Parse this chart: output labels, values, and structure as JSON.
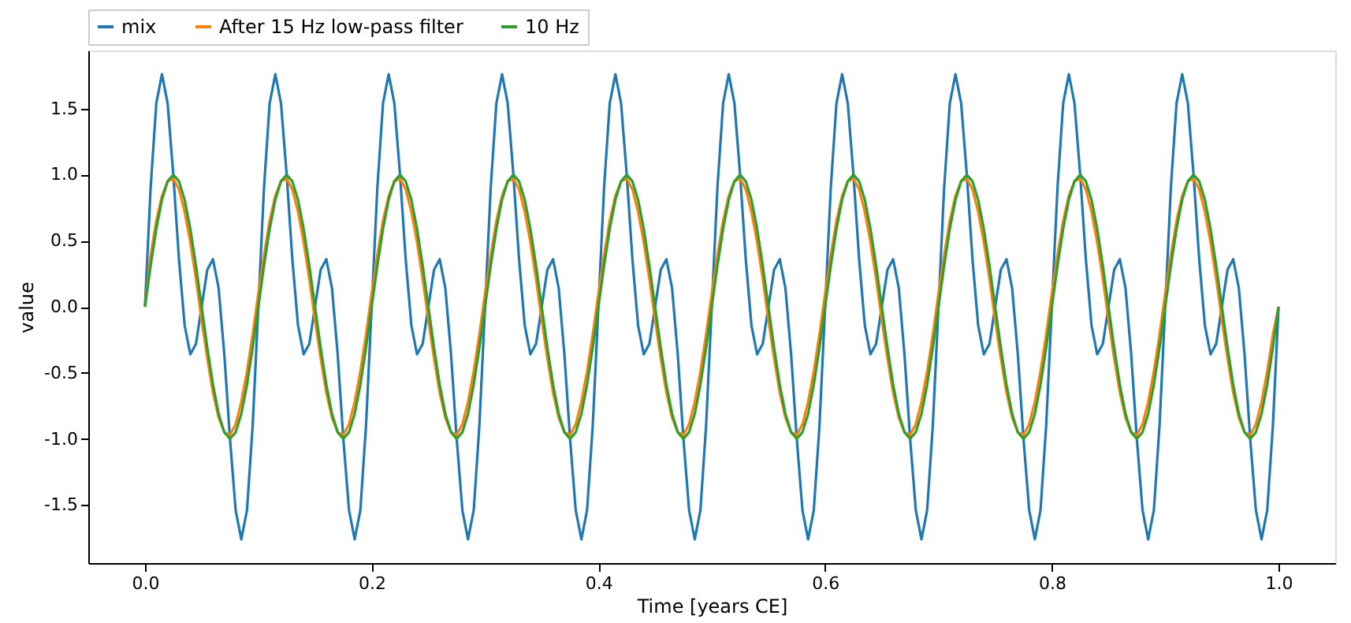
{
  "chart_data": {
    "type": "line",
    "xlabel": "Time [years CE]",
    "ylabel": "value",
    "x": [
      0,
      0.005,
      0.01,
      0.015,
      0.02,
      0.025,
      0.03,
      0.035,
      0.04,
      0.045,
      0.05,
      0.055,
      0.06,
      0.065,
      0.07,
      0.075,
      0.08,
      0.085,
      0.09,
      0.095,
      0.1,
      0.105,
      0.11,
      0.115,
      0.12,
      0.125,
      0.13,
      0.135,
      0.14,
      0.145,
      0.15,
      0.155,
      0.16,
      0.165,
      0.17,
      0.175,
      0.18,
      0.185,
      0.19,
      0.195,
      0.2,
      0.205,
      0.21,
      0.215,
      0.22,
      0.225,
      0.23,
      0.235,
      0.24,
      0.245,
      0.25,
      0.255,
      0.26,
      0.265,
      0.27,
      0.275,
      0.28,
      0.285,
      0.29,
      0.295,
      0.3,
      0.305,
      0.31,
      0.315,
      0.32,
      0.325,
      0.33,
      0.335,
      0.34,
      0.345,
      0.35,
      0.355,
      0.36,
      0.365,
      0.37,
      0.375,
      0.38,
      0.385,
      0.39,
      0.395,
      0.4,
      0.405,
      0.41,
      0.415,
      0.42,
      0.425,
      0.43,
      0.435,
      0.44,
      0.445,
      0.45,
      0.455,
      0.46,
      0.465,
      0.47,
      0.475,
      0.48,
      0.485,
      0.49,
      0.495,
      0.5,
      0.505,
      0.51,
      0.515,
      0.52,
      0.525,
      0.53,
      0.535,
      0.54,
      0.545,
      0.55,
      0.555,
      0.56,
      0.565,
      0.57,
      0.575,
      0.58,
      0.585,
      0.59,
      0.595,
      0.6,
      0.605,
      0.61,
      0.615,
      0.62,
      0.625,
      0.63,
      0.635,
      0.64,
      0.645,
      0.65,
      0.655,
      0.66,
      0.665,
      0.67,
      0.675,
      0.68,
      0.685,
      0.69,
      0.695,
      0.7,
      0.705,
      0.71,
      0.715,
      0.72,
      0.725,
      0.73,
      0.735,
      0.74,
      0.745,
      0.75,
      0.755,
      0.76,
      0.765,
      0.77,
      0.775,
      0.78,
      0.785,
      0.79,
      0.795,
      0.8,
      0.805,
      0.81,
      0.815,
      0.82,
      0.825,
      0.83,
      0.835,
      0.84,
      0.845,
      0.85,
      0.855,
      0.86,
      0.865,
      0.87,
      0.875,
      0.88,
      0.885,
      0.89,
      0.895,
      0.9,
      0.905,
      0.91,
      0.915,
      0.92,
      0.925,
      0.93,
      0.935,
      0.94,
      0.945,
      0.95,
      0.955,
      0.96,
      0.965,
      0.97,
      0.975,
      0.98,
      0.985,
      0.99,
      0.995,
      1
    ],
    "series": [
      {
        "name": "mix",
        "color": "#1f77b4",
        "values": [
          0,
          0.9,
          1.54,
          1.76,
          1.54,
          1,
          0.36,
          -0.14,
          -0.36,
          -0.28,
          0,
          0.28,
          0.36,
          0.14,
          -0.36,
          -1,
          -1.54,
          -1.76,
          -1.54,
          -0.9,
          0,
          0.9,
          1.54,
          1.76,
          1.54,
          1,
          0.36,
          -0.14,
          -0.36,
          -0.28,
          0,
          0.28,
          0.36,
          0.14,
          -0.36,
          -1,
          -1.54,
          -1.76,
          -1.54,
          -0.9,
          0,
          0.9,
          1.54,
          1.76,
          1.54,
          1,
          0.36,
          -0.14,
          -0.36,
          -0.28,
          0,
          0.28,
          0.36,
          0.14,
          -0.36,
          -1,
          -1.54,
          -1.76,
          -1.54,
          -0.9,
          0,
          0.9,
          1.54,
          1.76,
          1.54,
          1,
          0.36,
          -0.14,
          -0.36,
          -0.28,
          0,
          0.28,
          0.36,
          0.14,
          -0.36,
          -1,
          -1.54,
          -1.76,
          -1.54,
          -0.9,
          0,
          0.9,
          1.54,
          1.76,
          1.54,
          1,
          0.36,
          -0.14,
          -0.36,
          -0.28,
          0,
          0.28,
          0.36,
          0.14,
          -0.36,
          -1,
          -1.54,
          -1.76,
          -1.54,
          -0.9,
          0,
          0.9,
          1.54,
          1.76,
          1.54,
          1,
          0.36,
          -0.14,
          -0.36,
          -0.28,
          0,
          0.28,
          0.36,
          0.14,
          -0.36,
          -1,
          -1.54,
          -1.76,
          -1.54,
          -0.9,
          0,
          0.9,
          1.54,
          1.76,
          1.54,
          1,
          0.36,
          -0.14,
          -0.36,
          -0.28,
          0,
          0.28,
          0.36,
          0.14,
          -0.36,
          -1,
          -1.54,
          -1.76,
          -1.54,
          -0.9,
          0,
          0.9,
          1.54,
          1.76,
          1.54,
          1,
          0.36,
          -0.14,
          -0.36,
          -0.28,
          0,
          0.28,
          0.36,
          0.14,
          -0.36,
          -1,
          -1.54,
          -1.76,
          -1.54,
          -0.9,
          0,
          0.9,
          1.54,
          1.76,
          1.54,
          1,
          0.36,
          -0.14,
          -0.36,
          -0.28,
          0,
          0.28,
          0.36,
          0.14,
          -0.36,
          -1,
          -1.54,
          -1.76,
          -1.54,
          -0.9,
          0,
          0.9,
          1.54,
          1.76,
          1.54,
          1,
          0.36,
          -0.14,
          -0.36,
          -0.28,
          0,
          0.28,
          0.36,
          0.14,
          -0.36,
          -1,
          -1.54,
          -1.76,
          -1.54,
          -0.9,
          0
        ]
      },
      {
        "name": "After 15 Hz low-pass filter",
        "color": "#ff7f0e",
        "values": [
          0,
          0.39,
          0.65,
          0.84,
          0.95,
          0.97,
          0.89,
          0.72,
          0.49,
          0.21,
          -0.1,
          -0.39,
          -0.65,
          -0.84,
          -0.95,
          -0.97,
          -0.89,
          -0.72,
          -0.49,
          -0.21,
          0.1,
          0.39,
          0.65,
          0.84,
          0.95,
          0.97,
          0.89,
          0.72,
          0.49,
          0.21,
          -0.1,
          -0.39,
          -0.65,
          -0.84,
          -0.95,
          -0.97,
          -0.89,
          -0.72,
          -0.49,
          -0.21,
          0.1,
          0.39,
          0.65,
          0.84,
          0.95,
          0.97,
          0.89,
          0.72,
          0.49,
          0.21,
          -0.1,
          -0.39,
          -0.65,
          -0.84,
          -0.95,
          -0.97,
          -0.89,
          -0.72,
          -0.49,
          -0.21,
          0.1,
          0.39,
          0.65,
          0.84,
          0.95,
          0.97,
          0.89,
          0.72,
          0.49,
          0.21,
          -0.1,
          -0.39,
          -0.65,
          -0.84,
          -0.95,
          -0.97,
          -0.89,
          -0.72,
          -0.49,
          -0.21,
          0.1,
          0.39,
          0.65,
          0.84,
          0.95,
          0.97,
          0.89,
          0.72,
          0.49,
          0.21,
          -0.1,
          -0.39,
          -0.65,
          -0.84,
          -0.95,
          -0.97,
          -0.89,
          -0.72,
          -0.49,
          -0.21,
          0.1,
          0.39,
          0.65,
          0.84,
          0.95,
          0.97,
          0.89,
          0.72,
          0.49,
          0.21,
          -0.1,
          -0.39,
          -0.65,
          -0.84,
          -0.95,
          -0.97,
          -0.89,
          -0.72,
          -0.49,
          -0.21,
          0.1,
          0.39,
          0.65,
          0.84,
          0.95,
          0.97,
          0.89,
          0.72,
          0.49,
          0.21,
          -0.1,
          -0.39,
          -0.65,
          -0.84,
          -0.95,
          -0.97,
          -0.89,
          -0.72,
          -0.49,
          -0.21,
          0.1,
          0.39,
          0.65,
          0.84,
          0.95,
          0.97,
          0.89,
          0.72,
          0.49,
          0.21,
          -0.1,
          -0.39,
          -0.65,
          -0.84,
          -0.95,
          -0.97,
          -0.89,
          -0.72,
          -0.49,
          -0.21,
          0.1,
          0.39,
          0.65,
          0.84,
          0.95,
          0.97,
          0.89,
          0.72,
          0.49,
          0.21,
          -0.1,
          -0.39,
          -0.65,
          -0.84,
          -0.95,
          -0.97,
          -0.89,
          -0.72,
          -0.49,
          -0.21,
          0.1,
          0.39,
          0.65,
          0.84,
          0.95,
          0.97,
          0.89,
          0.72,
          0.49,
          0.21,
          -0.1,
          -0.39,
          -0.65,
          -0.84,
          -0.95,
          -0.97,
          -0.89,
          -0.72,
          -0.49,
          -0.21,
          0
        ]
      },
      {
        "name": "10 Hz",
        "color": "#2ca02c",
        "values": [
          0,
          0.31,
          0.59,
          0.81,
          0.95,
          1,
          0.95,
          0.81,
          0.59,
          0.31,
          0,
          -0.31,
          -0.59,
          -0.81,
          -0.95,
          -1,
          -0.95,
          -0.81,
          -0.59,
          -0.31,
          0,
          0.31,
          0.59,
          0.81,
          0.95,
          1,
          0.95,
          0.81,
          0.59,
          0.31,
          0,
          -0.31,
          -0.59,
          -0.81,
          -0.95,
          -1,
          -0.95,
          -0.81,
          -0.59,
          -0.31,
          0,
          0.31,
          0.59,
          0.81,
          0.95,
          1,
          0.95,
          0.81,
          0.59,
          0.31,
          0,
          -0.31,
          -0.59,
          -0.81,
          -0.95,
          -1,
          -0.95,
          -0.81,
          -0.59,
          -0.31,
          0,
          0.31,
          0.59,
          0.81,
          0.95,
          1,
          0.95,
          0.81,
          0.59,
          0.31,
          0,
          -0.31,
          -0.59,
          -0.81,
          -0.95,
          -1,
          -0.95,
          -0.81,
          -0.59,
          -0.31,
          0,
          0.31,
          0.59,
          0.81,
          0.95,
          1,
          0.95,
          0.81,
          0.59,
          0.31,
          0,
          -0.31,
          -0.59,
          -0.81,
          -0.95,
          -1,
          -0.95,
          -0.81,
          -0.59,
          -0.31,
          0,
          0.31,
          0.59,
          0.81,
          0.95,
          1,
          0.95,
          0.81,
          0.59,
          0.31,
          0,
          -0.31,
          -0.59,
          -0.81,
          -0.95,
          -1,
          -0.95,
          -0.81,
          -0.59,
          -0.31,
          0,
          0.31,
          0.59,
          0.81,
          0.95,
          1,
          0.95,
          0.81,
          0.59,
          0.31,
          0,
          -0.31,
          -0.59,
          -0.81,
          -0.95,
          -1,
          -0.95,
          -0.81,
          -0.59,
          -0.31,
          0,
          0.31,
          0.59,
          0.81,
          0.95,
          1,
          0.95,
          0.81,
          0.59,
          0.31,
          0,
          -0.31,
          -0.59,
          -0.81,
          -0.95,
          -1,
          -0.95,
          -0.81,
          -0.59,
          -0.31,
          0,
          0.31,
          0.59,
          0.81,
          0.95,
          1,
          0.95,
          0.81,
          0.59,
          0.31,
          0,
          -0.31,
          -0.59,
          -0.81,
          -0.95,
          -1,
          -0.95,
          -0.81,
          -0.59,
          -0.31,
          0,
          0.31,
          0.59,
          0.81,
          0.95,
          1,
          0.95,
          0.81,
          0.59,
          0.31,
          0,
          -0.31,
          -0.59,
          -0.81,
          -0.95,
          -1,
          -0.95,
          -0.81,
          -0.59,
          -0.31,
          0
        ]
      }
    ],
    "xlim": [
      -0.05,
      1.05
    ],
    "xticks": [
      {
        "value": 0,
        "label": "0.0"
      },
      0.2,
      0.4,
      0.6,
      0.8,
      {
        "value": 1,
        "label": "1.0"
      }
    ],
    "ylim": [
      -1.94,
      1.94
    ],
    "yticks": [
      -1.5,
      {
        "value": -1,
        "label": "-1.0"
      },
      -0.5,
      {
        "value": 0,
        "label": "0.0"
      },
      0.5,
      {
        "value": 1,
        "label": "1.0"
      },
      1.5
    ],
    "grid": false,
    "legend": "top left",
    "marker": "none",
    "line_style": "solid"
  }
}
